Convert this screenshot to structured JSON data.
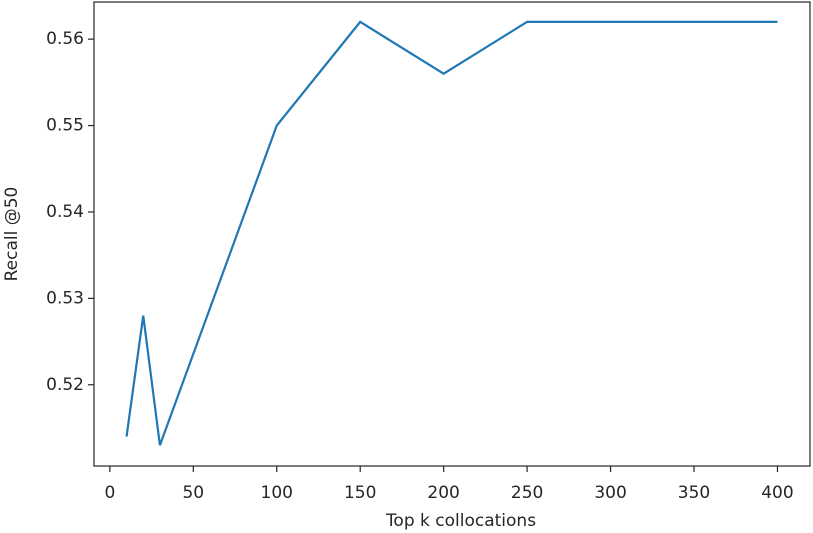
{
  "chart_data": {
    "type": "line",
    "xlabel": "Top k collocations",
    "ylabel": "Recall @50",
    "x": [
      10,
      20,
      30,
      100,
      150,
      200,
      250,
      400
    ],
    "series": [
      {
        "name": "Recall @50",
        "color": "#1f77b4",
        "values": [
          0.514,
          0.528,
          0.513,
          0.55,
          0.562,
          0.556,
          0.562,
          0.562
        ]
      }
    ],
    "xlim": [
      -9.5,
      419.5
    ],
    "ylim": [
      0.5106,
      0.5643
    ],
    "xticks": [
      0,
      50,
      100,
      150,
      200,
      250,
      300,
      350,
      400
    ],
    "yticks": [
      0.52,
      0.53,
      0.54,
      0.55,
      0.56
    ],
    "grid": false
  }
}
